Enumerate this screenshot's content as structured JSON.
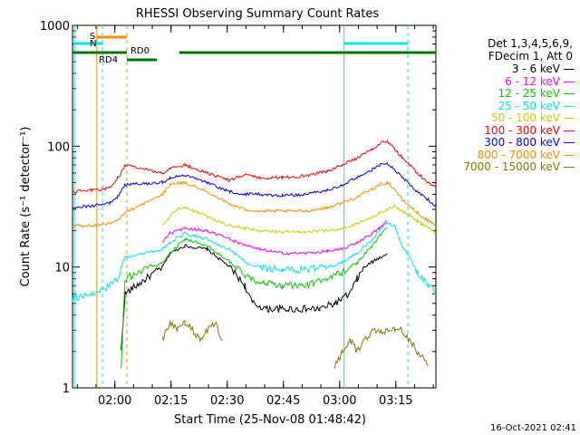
{
  "chart_data": {
    "type": "line",
    "title": "RHESSI Observing Summary Count Rates",
    "xlabel": "Start Time (25-Nov-08 01:48:42)",
    "ylabel": "Count Rate (s⁻¹ detector⁻¹)",
    "yscale": "log",
    "ylim": [
      1,
      1000
    ],
    "xlim_minutes": [
      0,
      97
    ],
    "x_ticks": [
      {
        "label": "02:00",
        "min": 11.3
      },
      {
        "label": "02:15",
        "min": 26.3
      },
      {
        "label": "02:30",
        "min": 41.3
      },
      {
        "label": "02:45",
        "min": 56.3
      },
      {
        "label": "03:00",
        "min": 71.3
      },
      {
        "label": "03:15",
        "min": 86.3
      }
    ],
    "y_ticks": [
      {
        "label": "1",
        "v": 1
      },
      {
        "label": "10",
        "v": 10
      },
      {
        "label": "100",
        "v": 100
      },
      {
        "label": "1000",
        "v": 1000
      }
    ],
    "header": [
      "Det 1,3,4,5,6,9,",
      "FDecim 1, Att 0"
    ],
    "series": [
      {
        "name": "3 - 6 keV",
        "color": "#000000",
        "x": [
          0,
          12,
          13,
          14,
          24,
          26,
          30,
          36,
          42,
          46,
          48,
          52,
          56,
          60,
          66,
          70,
          74,
          76,
          78,
          80,
          82,
          84,
          86
        ],
        "y": [
          null,
          null,
          2.0,
          6.0,
          10,
          13,
          15,
          14,
          10,
          7,
          5,
          4.5,
          4.5,
          4.5,
          4.5,
          5,
          6,
          8,
          10,
          11,
          12,
          13,
          null
        ]
      },
      {
        "name": "6 - 12 keV",
        "color": "#ff00ff",
        "x": [
          0,
          12,
          13,
          14,
          24,
          26,
          30,
          36,
          42,
          46,
          50,
          56,
          62,
          68,
          72,
          76,
          80,
          82,
          84,
          86,
          88,
          92,
          97
        ],
        "y": [
          null,
          null,
          null,
          null,
          16,
          19,
          21,
          20,
          17,
          15,
          14,
          13,
          13,
          13.5,
          14,
          16,
          19,
          21,
          24,
          null,
          null,
          null,
          null
        ]
      },
      {
        "name": "12 - 25 keV",
        "color": "#00cc00",
        "x": [
          0,
          12,
          13,
          14,
          24,
          26,
          30,
          36,
          42,
          46,
          50,
          56,
          62,
          68,
          72,
          76,
          80,
          82,
          84,
          86
        ],
        "y": [
          null,
          null,
          1.5,
          8,
          11,
          13,
          17,
          15,
          11,
          8.5,
          7.5,
          7,
          7,
          8,
          9,
          11,
          15,
          18,
          21,
          null
        ]
      },
      {
        "name": "25 - 50 keV",
        "color": "#00e5ee",
        "x": [
          0,
          5,
          10,
          12,
          13,
          14,
          24,
          26,
          30,
          36,
          42,
          46,
          50,
          56,
          62,
          68,
          72,
          76,
          80,
          82,
          84,
          86,
          88,
          90,
          92,
          95,
          97
        ],
        "y": [
          5.5,
          6,
          7,
          8,
          10,
          12,
          14,
          16,
          19,
          17,
          14,
          11,
          10,
          9.5,
          9.5,
          10,
          11,
          13,
          17,
          20,
          23,
          22,
          15,
          12,
          9,
          7,
          6
        ]
      },
      {
        "name": "50 - 100 keV",
        "color": "#cccc00",
        "x": [
          24,
          26,
          28,
          30,
          34,
          38,
          42,
          46,
          50,
          56,
          62,
          68,
          72,
          76,
          80,
          82,
          84,
          86,
          88,
          90,
          92,
          95,
          97
        ],
        "y": [
          22,
          26,
          30,
          31,
          28,
          24,
          22,
          21,
          20,
          19.5,
          19.5,
          20,
          21,
          23,
          26,
          28,
          30,
          32,
          29,
          27,
          24,
          21,
          19
        ]
      },
      {
        "name": "100 - 300 keV",
        "color": "#ff0000",
        "x": [
          0,
          5,
          10,
          12,
          13,
          14,
          24,
          26,
          30,
          36,
          42,
          46,
          50,
          56,
          62,
          68,
          72,
          76,
          80,
          82,
          84,
          86,
          88,
          90,
          92,
          95,
          97
        ],
        "y": [
          42,
          43,
          45,
          55,
          60,
          70,
          60,
          65,
          70,
          60,
          52,
          58,
          55,
          55,
          57,
          62,
          70,
          80,
          95,
          105,
          110,
          95,
          80,
          70,
          60,
          50,
          46
        ]
      },
      {
        "name": "300 - 800 keV",
        "color": "#0000ff",
        "x": [
          0,
          5,
          10,
          12,
          13,
          14,
          24,
          26,
          30,
          36,
          42,
          46,
          50,
          56,
          62,
          68,
          72,
          76,
          80,
          82,
          84,
          86,
          88,
          90,
          92,
          95,
          97
        ],
        "y": [
          31,
          32,
          34,
          38,
          42,
          48,
          50,
          54,
          58,
          50,
          42,
          40,
          40,
          39,
          40,
          43,
          48,
          55,
          64,
          70,
          72,
          64,
          56,
          48,
          42,
          36,
          32
        ]
      },
      {
        "name": "800 - 7000 keV",
        "color": "#ff8c00",
        "x": [
          0,
          5,
          10,
          12,
          13,
          14,
          24,
          26,
          30,
          36,
          42,
          46,
          50,
          56,
          62,
          68,
          72,
          76,
          80,
          82,
          84,
          86,
          88,
          90,
          92,
          95,
          97
        ],
        "y": [
          22,
          22,
          23,
          24,
          26,
          28,
          40,
          48,
          50,
          42,
          33,
          30,
          29,
          29,
          29,
          31,
          34,
          38,
          44,
          48,
          50,
          44,
          36,
          32,
          28,
          24,
          22
        ]
      },
      {
        "name": "7000 - 15000 keV",
        "color": "#8b7500",
        "x": [
          24,
          25,
          26,
          28,
          30,
          32,
          34,
          36,
          38,
          40,
          42,
          46,
          48,
          52,
          56,
          60,
          64,
          68,
          70,
          72,
          74,
          76,
          80,
          82,
          84,
          86,
          88,
          90,
          92,
          95
        ],
        "y": [
          2.5,
          3,
          3.5,
          3.0,
          3.5,
          3,
          2.5,
          3,
          3.5,
          2.5,
          null,
          null,
          null,
          null,
          null,
          null,
          null,
          null,
          1.5,
          2,
          2.5,
          2,
          3,
          3,
          3,
          3,
          3,
          2.5,
          2,
          1.5
        ]
      }
    ],
    "annotations": {
      "s_label": "S",
      "n_label": "N",
      "rd4_label": "RD4",
      "rd0_label": "RD0",
      "footer_date": "16-Oct-2021 02:41",
      "vlines_solid_cyan": [
        0.5,
        72.5
      ],
      "vlines_dashed_cyan": [
        8.0,
        89.5
      ],
      "vlines_solid_orange": [
        6.5
      ],
      "vlines_dashed_orange": [
        14.5
      ],
      "s_bar": [
        6.5,
        14.5
      ],
      "n_bar": [
        0.5,
        8.0
      ],
      "n_bar2": [
        72.5,
        89.5
      ],
      "rd_bar_segments": [
        [
          0,
          14.5
        ],
        [
          14.5,
          22.5
        ],
        [
          28.5,
          97
        ]
      ]
    }
  }
}
